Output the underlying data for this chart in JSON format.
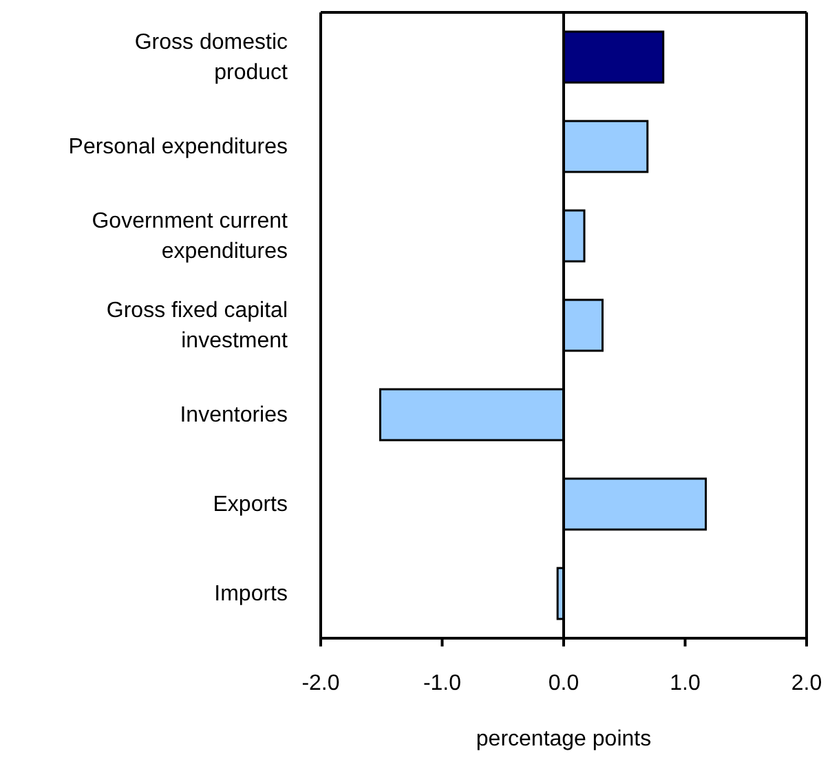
{
  "chart_data": {
    "type": "bar",
    "orientation": "horizontal",
    "xlabel": "percentage points",
    "categories": [
      "Gross domestic product",
      "Personal expenditures",
      "Government current expenditures",
      "Gross fixed capital investment",
      "Inventories",
      "Exports",
      "Imports"
    ],
    "values": [
      0.82,
      0.69,
      0.17,
      0.32,
      -1.51,
      1.17,
      -0.05
    ],
    "colors": [
      "#000080",
      "#99ccff",
      "#99ccff",
      "#99ccff",
      "#99ccff",
      "#99ccff",
      "#99ccff"
    ],
    "xlim": [
      -2,
      2
    ],
    "xticks": [
      {
        "value": -2,
        "label": "-2.0"
      },
      {
        "value": -1,
        "label": "-1.0"
      },
      {
        "value": 0,
        "label": "0.0"
      },
      {
        "value": 1,
        "label": "1.0"
      },
      {
        "value": 2,
        "label": "2.0"
      }
    ],
    "ref_lines": [
      {
        "axis": "x",
        "value": 0,
        "color": "#000000"
      }
    ],
    "grid": false
  }
}
